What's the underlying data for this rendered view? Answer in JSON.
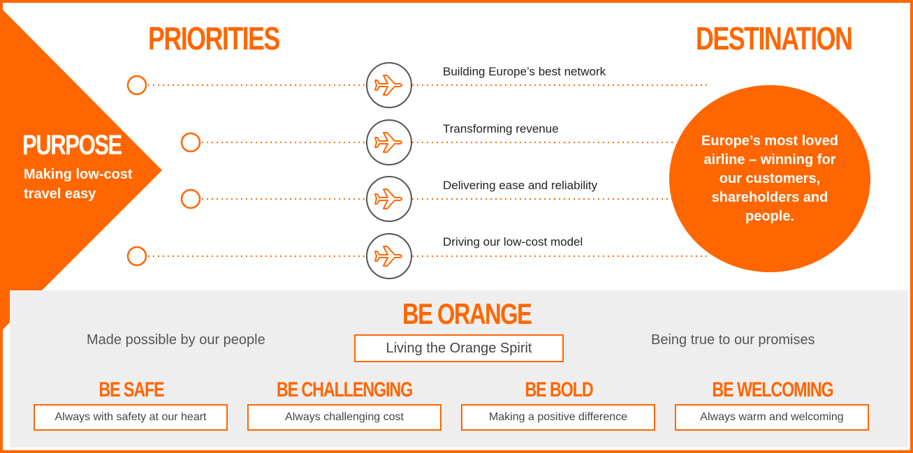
{
  "headings": {
    "priorities": "PRIORITIES",
    "destination": "DESTINATION"
  },
  "purpose": {
    "title": "PURPOSE",
    "text": "Making low-cost travel easy"
  },
  "priorities": [
    {
      "label": "Building Europe’s best network",
      "icon": "airplane-icon"
    },
    {
      "label": "Transforming revenue",
      "icon": "airplane-icon"
    },
    {
      "label": "Delivering ease and reliability",
      "icon": "airplane-icon"
    },
    {
      "label": "Driving our low-cost model",
      "icon": "airplane-icon"
    }
  ],
  "destination": {
    "text": "Europe’s most loved airline – winning for our customers, shareholders and people."
  },
  "be_orange": {
    "title": "BE ORANGE",
    "left_text": "Made possible by our people",
    "center_box": "Living the Orange Spirit",
    "right_text": "Being true to our promises"
  },
  "values": [
    {
      "title": "BE SAFE",
      "text": "Always with safety at our heart"
    },
    {
      "title": "BE CHALLENGING",
      "text": "Always challenging cost"
    },
    {
      "title": "BE BOLD",
      "text": "Making a positive difference"
    },
    {
      "title": "BE WELCOMING",
      "text": "Always warm and welcoming"
    }
  ],
  "colors": {
    "brand_orange": "#ff6600",
    "panel_grey": "#eeeeee",
    "circle_outline": "#555555"
  }
}
